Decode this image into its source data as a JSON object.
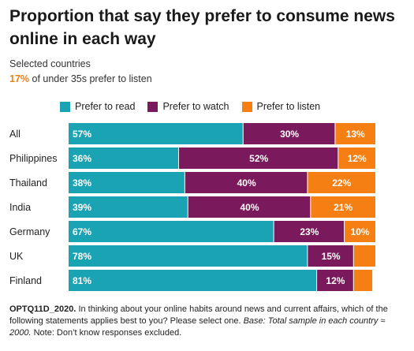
{
  "title": "Proportion that say they prefer to consume news online in each way",
  "subtitle": "Selected countries",
  "highlight": {
    "value": "17%",
    "text": " of under 35s prefer to listen"
  },
  "colors": {
    "read": "#1aa3b3",
    "watch": "#7a1a5c",
    "listen": "#f57f12"
  },
  "chart_data": {
    "type": "bar",
    "orientation": "horizontal",
    "stacked": true,
    "categories": [
      "All",
      "Philippines",
      "Thailand",
      "India",
      "Germany",
      "UK",
      "Finland"
    ],
    "series": [
      {
        "name": "Prefer to read",
        "values": [
          57,
          36,
          38,
          39,
          67,
          78,
          81
        ],
        "labels": [
          "57%",
          "36%",
          "38%",
          "39%",
          "67%",
          "78%",
          "81%"
        ]
      },
      {
        "name": "Prefer to watch",
        "values": [
          30,
          52,
          40,
          40,
          23,
          15,
          12
        ],
        "labels": [
          "30%",
          "52%",
          "40%",
          "40%",
          "23%",
          "15%",
          "12%"
        ]
      },
      {
        "name": "Prefer to listen",
        "values": [
          13,
          12,
          22,
          21,
          10,
          7,
          6
        ],
        "labels": [
          "13%",
          "12%",
          "22%",
          "21%",
          "10%",
          "",
          ""
        ]
      }
    ],
    "xlim": [
      0,
      100
    ],
    "legend": "top"
  },
  "footnote": {
    "code": "OPTQ11D_2020.",
    "question": " In thinking about your online habits around news and current affairs, which of the following statements applies best to you? Please select one. ",
    "base": "Base: Total sample in each country ≈ 2000.",
    "note": " Note: Don’t know responses excluded."
  }
}
